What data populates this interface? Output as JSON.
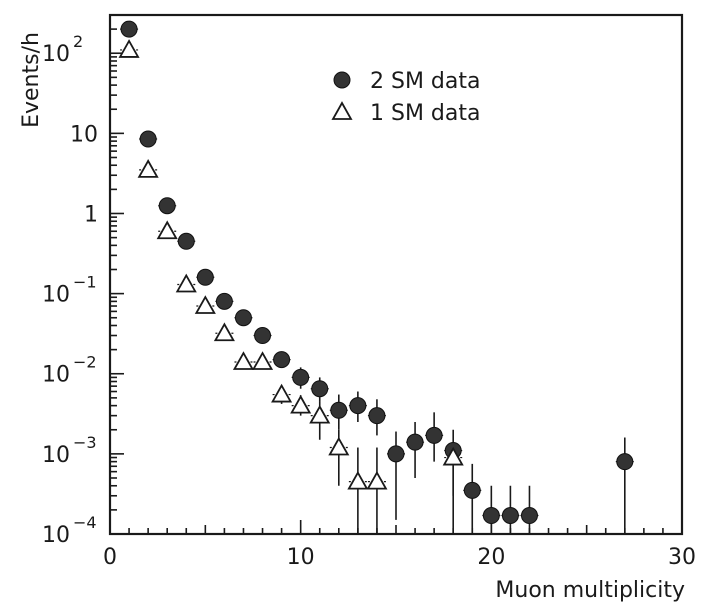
{
  "chart_data": {
    "type": "scatter",
    "title": "",
    "xlabel": "Muon multiplicity",
    "ylabel": "Events/h",
    "xlim": [
      0,
      30
    ],
    "ylim": [
      0.0001,
      300
    ],
    "yscale": "log",
    "x_ticks": [
      0,
      10,
      20,
      30
    ],
    "x_tick_labels": [
      "0",
      "10",
      "20",
      "30"
    ],
    "y_ticks": [
      {
        "value": 0.0001,
        "base": "10",
        "exp": "−4"
      },
      {
        "value": 0.001,
        "base": "10",
        "exp": "−3"
      },
      {
        "value": 0.01,
        "base": "10",
        "exp": "−2"
      },
      {
        "value": 0.1,
        "base": "10",
        "exp": "−1"
      },
      {
        "value": 1,
        "base": "1",
        "exp": ""
      },
      {
        "value": 10,
        "base": "10",
        "exp": ""
      },
      {
        "value": 100,
        "base": "10",
        "exp": "2"
      }
    ],
    "legend_position": "top-right",
    "series": [
      {
        "name": "2 SM data",
        "marker": "filled-circle",
        "color": "#333333",
        "points": [
          {
            "x": 1,
            "y": 200,
            "lo": 190,
            "hi": 210
          },
          {
            "x": 2,
            "y": 8.5,
            "lo": 8.0,
            "hi": 9.0
          },
          {
            "x": 3,
            "y": 1.25,
            "lo": 1.15,
            "hi": 1.35
          },
          {
            "x": 4,
            "y": 0.45,
            "lo": 0.41,
            "hi": 0.5
          },
          {
            "x": 5,
            "y": 0.16,
            "lo": 0.14,
            "hi": 0.18
          },
          {
            "x": 6,
            "y": 0.08,
            "lo": 0.07,
            "hi": 0.092
          },
          {
            "x": 7,
            "y": 0.05,
            "lo": 0.043,
            "hi": 0.058
          },
          {
            "x": 8,
            "y": 0.03,
            "lo": 0.025,
            "hi": 0.036
          },
          {
            "x": 9,
            "y": 0.015,
            "lo": 0.012,
            "hi": 0.019
          },
          {
            "x": 10,
            "y": 0.009,
            "lo": 0.0065,
            "hi": 0.012
          },
          {
            "x": 11,
            "y": 0.0065,
            "lo": 0.0045,
            "hi": 0.009
          },
          {
            "x": 12,
            "y": 0.0035,
            "lo": 0.002,
            "hi": 0.0055
          },
          {
            "x": 13,
            "y": 0.004,
            "lo": 0.0025,
            "hi": 0.006
          },
          {
            "x": 14,
            "y": 0.003,
            "lo": 0.0017,
            "hi": 0.0048
          },
          {
            "x": 15,
            "y": 0.001,
            "lo": 0.00015,
            "hi": 0.0019
          },
          {
            "x": 16,
            "y": 0.0014,
            "lo": 0.0005,
            "hi": 0.0025
          },
          {
            "x": 17,
            "y": 0.0017,
            "lo": 0.0008,
            "hi": 0.0033
          },
          {
            "x": 18,
            "y": 0.0011,
            "lo": 0.0003,
            "hi": 0.002
          },
          {
            "x": 19,
            "y": 0.00035,
            "lo": 0.0001,
            "hi": 0.00075
          },
          {
            "x": 20,
            "y": 0.00017,
            "lo": 0.0001,
            "hi": 0.0004
          },
          {
            "x": 21,
            "y": 0.00017,
            "lo": 0.0001,
            "hi": 0.0004
          },
          {
            "x": 22,
            "y": 0.00017,
            "lo": 0.0001,
            "hi": 0.0004
          },
          {
            "x": 27,
            "y": 0.0008,
            "lo": 0.0001,
            "hi": 0.0016
          }
        ]
      },
      {
        "name": "1 SM data",
        "marker": "open-triangle",
        "color": "#1a1a1a",
        "points": [
          {
            "x": 1,
            "y": 110,
            "lo": 104,
            "hi": 116
          },
          {
            "x": 2,
            "y": 3.5,
            "lo": 3.25,
            "hi": 3.75
          },
          {
            "x": 3,
            "y": 0.6,
            "lo": 0.55,
            "hi": 0.66
          },
          {
            "x": 4,
            "y": 0.13,
            "lo": 0.118,
            "hi": 0.143
          },
          {
            "x": 5,
            "y": 0.07,
            "lo": 0.062,
            "hi": 0.078
          },
          {
            "x": 6,
            "y": 0.032,
            "lo": 0.028,
            "hi": 0.036
          },
          {
            "x": 7,
            "y": 0.014,
            "lo": 0.012,
            "hi": 0.016
          },
          {
            "x": 8,
            "y": 0.014,
            "lo": 0.012,
            "hi": 0.016
          },
          {
            "x": 9,
            "y": 0.0055,
            "lo": 0.0042,
            "hi": 0.0072
          },
          {
            "x": 10,
            "y": 0.004,
            "lo": 0.003,
            "hi": 0.0054
          },
          {
            "x": 11,
            "y": 0.003,
            "lo": 0.0015,
            "hi": 0.0045
          },
          {
            "x": 12,
            "y": 0.0012,
            "lo": 0.0004,
            "hi": 0.002
          },
          {
            "x": 13,
            "y": 0.00045,
            "lo": 0.0001,
            "hi": 0.0012
          },
          {
            "x": 14,
            "y": 0.00045,
            "lo": 0.0001,
            "hi": 0.0012
          },
          {
            "x": 18,
            "y": 0.0009,
            "lo": 0.0001,
            "hi": 0.0012
          }
        ]
      }
    ]
  }
}
